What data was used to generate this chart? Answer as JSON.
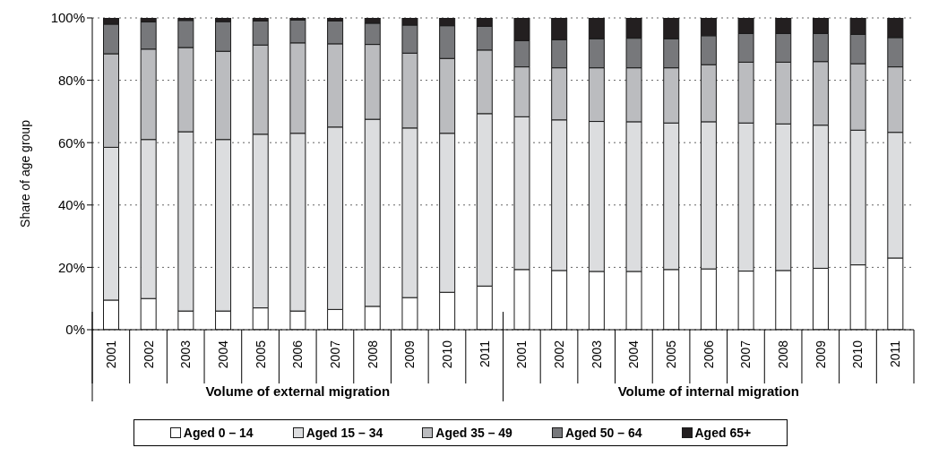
{
  "chart_data": {
    "type": "bar",
    "stacked": true,
    "ylabel": "Share of age group",
    "categories": [
      "2001",
      "2002",
      "2003",
      "2004",
      "2005",
      "2006",
      "2007",
      "2008",
      "2009",
      "2010",
      "2011",
      "2001",
      "2002",
      "2003",
      "2004",
      "2005",
      "2006",
      "2007",
      "2008",
      "2009",
      "2010",
      "2011"
    ],
    "annotations": [
      "Volume of external migration",
      "Volume of internal migration"
    ],
    "series": [
      {
        "name": "Aged 0 – 14",
        "color": "#ffffff",
        "values": [
          9.5,
          10,
          6,
          6,
          7,
          6,
          6.5,
          7.5,
          10.3,
          12,
          14,
          19.3,
          19,
          18.7,
          18.7,
          19.3,
          19.5,
          18.8,
          19,
          19.7,
          20.8,
          23
        ]
      },
      {
        "name": "Aged 15 – 34",
        "color": "#dcdddf",
        "values": [
          49,
          51,
          57.5,
          55,
          55.7,
          57,
          58.5,
          60,
          54.4,
          51,
          55.3,
          49,
          48.3,
          48.1,
          48,
          47,
          47.2,
          47.5,
          47,
          45.9,
          43.2,
          40.3
        ]
      },
      {
        "name": "Aged 35 – 49",
        "color": "#bbbcbf",
        "values": [
          30,
          29,
          27,
          28.3,
          28.6,
          29,
          26.7,
          24,
          24,
          24,
          20.4,
          16,
          16.7,
          17.2,
          17.3,
          17.7,
          18.3,
          19.5,
          19.8,
          20.4,
          21.3,
          21
        ]
      },
      {
        "name": "Aged 50 – 64",
        "color": "#77787b",
        "values": [
          9.5,
          8.7,
          8.7,
          9.5,
          7.7,
          7.3,
          7.3,
          6.8,
          9,
          10.5,
          7.6,
          8.4,
          9,
          9.3,
          9.5,
          9.3,
          9.3,
          9.2,
          9.2,
          9,
          9.4,
          9.4
        ]
      },
      {
        "name": "Aged 65+",
        "color": "#231f20",
        "values": [
          2,
          1.3,
          0.8,
          1.2,
          1,
          0.7,
          1,
          1.7,
          2.3,
          2.5,
          2.7,
          7.3,
          7,
          6.7,
          6.5,
          6.7,
          5.7,
          5,
          5,
          5,
          5.3,
          6.3
        ]
      }
    ],
    "ylim": [
      0,
      100
    ],
    "yticks": [
      {
        "value": 0,
        "label": "0%"
      },
      {
        "value": 20,
        "label": "20%"
      },
      {
        "value": 40,
        "label": "40%"
      },
      {
        "value": 60,
        "label": "60%"
      },
      {
        "value": 80,
        "label": "80%"
      },
      {
        "value": 100,
        "label": "100%"
      }
    ],
    "grid": "y",
    "legend": "bottom"
  }
}
